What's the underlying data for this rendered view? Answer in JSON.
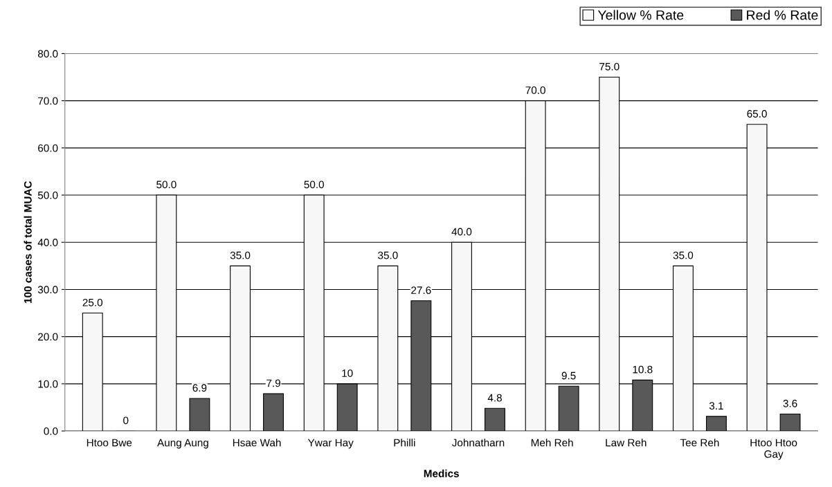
{
  "chart_data": {
    "type": "bar",
    "xlabel": "Medics",
    "ylabel": "100 cases of total MUAC",
    "categories": [
      "Htoo Bwe",
      "Aung Aung",
      "Hsae Wah",
      "Ywar Hay",
      "Philli",
      "Johnatharn",
      "Meh Reh",
      "Law Reh",
      "Tee Reh",
      "Htoo Htoo Gay"
    ],
    "series": [
      {
        "name": "Yellow % Rate",
        "color": "#f7f7f7",
        "values": [
          25.0,
          50.0,
          35.0,
          50.0,
          35.0,
          40.0,
          70.0,
          75.0,
          35.0,
          65.0
        ],
        "value_labels": [
          "25.0",
          "50.0",
          "35.0",
          "50.0",
          "35.0",
          "40.0",
          "70.0",
          "75.0",
          "35.0",
          "65.0"
        ]
      },
      {
        "name": "Red % Rate",
        "color": "#595959",
        "values": [
          0,
          6.9,
          7.9,
          10,
          27.6,
          4.8,
          9.5,
          10.8,
          3.1,
          3.6
        ],
        "value_labels": [
          "0",
          "6.9",
          "7.9",
          "10",
          "27.6",
          "4.8",
          "9.5",
          "10.8",
          "3.1",
          "3.6"
        ]
      }
    ],
    "ylim": [
      0,
      80
    ],
    "yticks": [
      {
        "value": 0,
        "label": "0.0"
      },
      {
        "value": 10,
        "label": "10.0"
      },
      {
        "value": 20,
        "label": "20.0"
      },
      {
        "value": 30,
        "label": "30.0"
      },
      {
        "value": 40,
        "label": "40.0"
      },
      {
        "value": 50,
        "label": "50.0"
      },
      {
        "value": 60,
        "label": "60.0"
      },
      {
        "value": 70,
        "label": "70.0"
      },
      {
        "value": 80,
        "label": "80.0"
      }
    ],
    "grid": "y",
    "legend": "top right"
  }
}
